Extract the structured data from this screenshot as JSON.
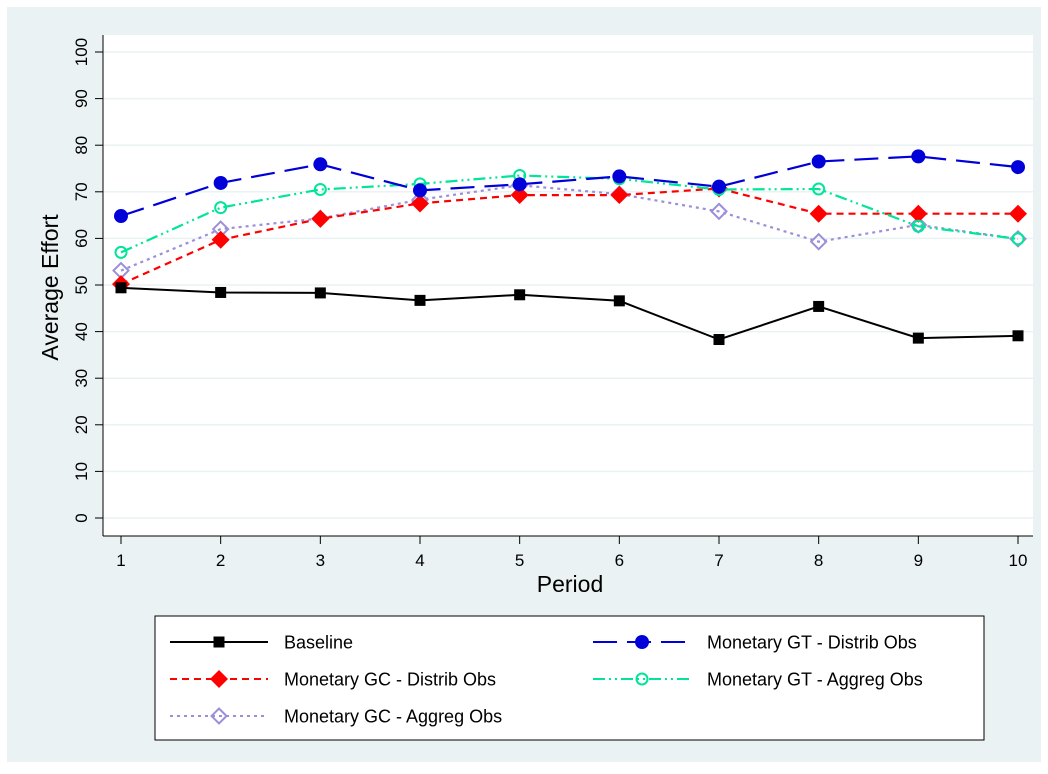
{
  "colors": {
    "outer_bg": "#eaf2f3",
    "plot_bg": "#ffffff",
    "grid": "#eaf2f3"
  },
  "chart_data": {
    "type": "line",
    "xlabel": "Period",
    "ylabel": "Average Effort",
    "xlim": [
      1,
      10
    ],
    "ylim": [
      0,
      100
    ],
    "x": [
      1,
      2,
      3,
      4,
      5,
      6,
      7,
      8,
      9,
      10
    ],
    "x_ticks": [
      "1",
      "2",
      "3",
      "4",
      "5",
      "6",
      "7",
      "8",
      "9",
      "10"
    ],
    "y_ticks": [
      "0",
      "10",
      "20",
      "30",
      "40",
      "50",
      "60",
      "70",
      "80",
      "90",
      "100"
    ],
    "grid": true,
    "legend_position": "bottom",
    "series": [
      {
        "name": "Baseline",
        "color": "#000000",
        "marker": "filled-square",
        "line_style": "solid",
        "values": [
          49.4,
          48.4,
          48.3,
          46.7,
          47.9,
          46.6,
          38.3,
          45.4,
          38.6,
          39.1
        ]
      },
      {
        "name": "Monetary GT - Distrib Obs",
        "color": "#0000d8",
        "marker": "filled-circle",
        "line_style": "long-dash",
        "values": [
          64.8,
          71.9,
          75.9,
          70.3,
          71.6,
          73.3,
          71.1,
          76.5,
          77.6,
          75.3
        ]
      },
      {
        "name": "Monetary GC - Distrib Obs",
        "color": "#ff0000",
        "marker": "filled-diamond",
        "line_style": "short-dash",
        "values": [
          50.2,
          59.7,
          64.2,
          67.5,
          69.3,
          69.3,
          70.7,
          65.3,
          65.3,
          65.3
        ]
      },
      {
        "name": "Monetary GT - Aggreg Obs",
        "color": "#00e59a",
        "marker": "hollow-circle",
        "line_style": "dash-dot-dot",
        "values": [
          57.0,
          66.6,
          70.5,
          71.7,
          73.5,
          72.8,
          70.5,
          70.6,
          62.6,
          59.9
        ]
      },
      {
        "name": "Monetary GC - Aggreg Obs",
        "color": "#9b8fd9",
        "marker": "hollow-diamond",
        "line_style": "dotted",
        "values": [
          53.1,
          62.0,
          64.3,
          68.3,
          71.4,
          69.5,
          65.8,
          59.3,
          62.9,
          59.9
        ]
      }
    ]
  }
}
